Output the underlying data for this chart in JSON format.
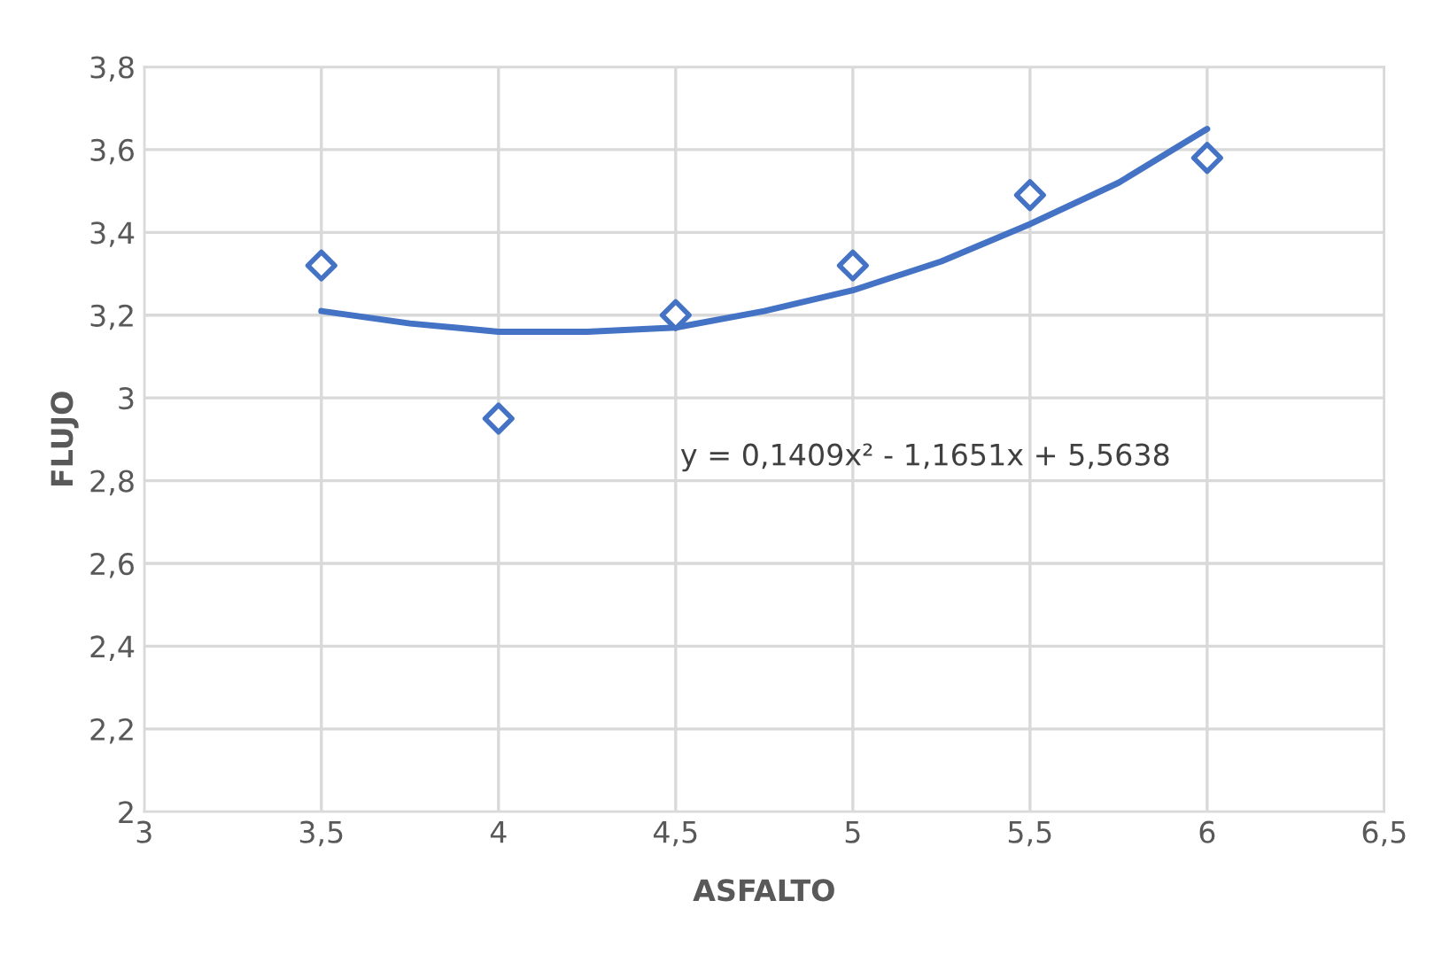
{
  "chart_data": {
    "type": "scatter",
    "xlabel": "ASFALTO",
    "ylabel": "FLUJO",
    "annotations": [
      "y = 0,1409x² - 1,1651x + 5,5638"
    ],
    "series": [
      {
        "color": "#4472c4",
        "marker": "diamond",
        "x": [
          3.5,
          4,
          4.5,
          5,
          5.5,
          6
        ],
        "values": [
          3.32,
          2.95,
          3.2,
          3.32,
          3.49,
          3.58
        ]
      },
      {
        "type": "line",
        "color": "#4472c4",
        "marker": "none",
        "line_style": "solid",
        "x": [
          3.5,
          3.75,
          4,
          4.25,
          4.5,
          4.75,
          5,
          5.25,
          5.5,
          5.75,
          6
        ],
        "values": [
          3.21,
          3.18,
          3.16,
          3.16,
          3.17,
          3.21,
          3.26,
          3.33,
          3.42,
          3.52,
          3.65
        ]
      }
    ],
    "xlim": [
      3,
      6.5
    ],
    "xticks": [
      3,
      {
        "value": 3.5,
        "label": "3,5"
      },
      4,
      {
        "value": 4.5,
        "label": "4,5"
      },
      5,
      {
        "value": 5.5,
        "label": "5,5"
      },
      6,
      {
        "value": 6.5,
        "label": "6,5"
      }
    ],
    "ylim": [
      2,
      3.8
    ],
    "yticks": [
      2,
      {
        "value": 2.2,
        "label": "2,2"
      },
      {
        "value": 2.4,
        "label": "2,4"
      },
      {
        "value": 2.6,
        "label": "2,6"
      },
      {
        "value": 2.8,
        "label": "2,8"
      },
      3,
      {
        "value": 3.2,
        "label": "3,2"
      },
      {
        "value": 3.4,
        "label": "3,4"
      },
      {
        "value": 3.6,
        "label": "3,6"
      },
      {
        "value": 3.8,
        "label": "3,8"
      }
    ],
    "grid": true,
    "legend": false
  }
}
